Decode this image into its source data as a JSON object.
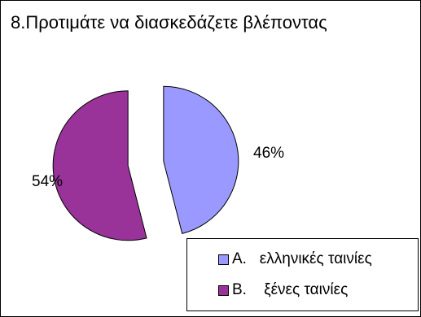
{
  "chart_data": {
    "type": "pie",
    "title": "8.Προτιμάτε να διασκεδάζετε βλέποντας",
    "categories": [
      "Α.   ελληνικές ταινίες",
      "Β.    ξένες ταινίες"
    ],
    "values": [
      46,
      54
    ],
    "value_labels": [
      "46%",
      "54%"
    ],
    "colors": [
      "#9999ff",
      "#993399"
    ],
    "exploded": true,
    "legend_position": "bottom-right"
  }
}
